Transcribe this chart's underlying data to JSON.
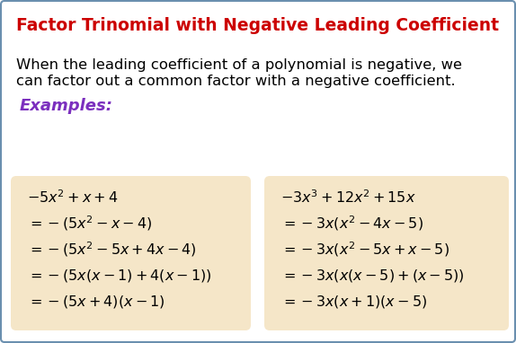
{
  "title": "Factor Trinomial with Negative Leading Coefficient",
  "title_color": "#cc0000",
  "title_fontsize": 13.5,
  "body_line1": "When the leading coefficient of a polynomial is negative, we",
  "body_line2": "can factor out a common factor with a negative coefficient.",
  "body_fontsize": 11.8,
  "examples_label": "Examples:",
  "examples_color": "#7b2fbe",
  "examples_fontsize": 13,
  "box_color": "#f5e6c8",
  "background_color": "#ffffff",
  "border_color": "#6a8faf",
  "left_box_lines": [
    "$-5x^2+x+4$",
    "$=-(5x^2-x-4)$",
    "$=-(5x^2-5x+4x-4)$",
    "$=-(5x(x-1)+4(x-1))$",
    "$=-(5x+4)(x-1)$"
  ],
  "right_box_lines": [
    "$-3x^3+12x^2+15x$",
    "$=-3x(x^2-4x-5)$",
    "$=-3x(x^2-5x+x-5)$",
    "$=-3x(x(x-5)+(x-5))$",
    "$=-3x(x+1)(x-5)$"
  ],
  "math_fontsize": 11.5
}
